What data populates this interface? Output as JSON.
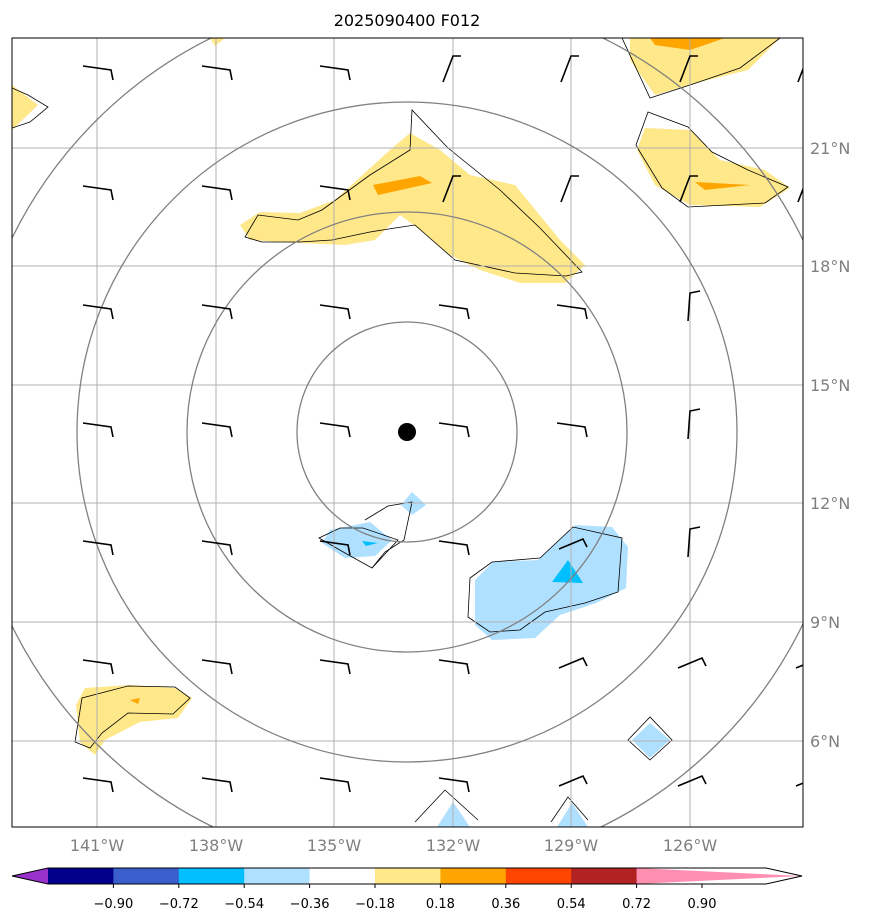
{
  "title": "2025090400 F012",
  "lon_labels": [
    "141°W",
    "138°W",
    "135°W",
    "132°W",
    "129°W",
    "126°W"
  ],
  "lat_labels": [
    "21°N",
    "18°N",
    "15°N",
    "12°N",
    "9°N",
    "6°N"
  ],
  "colorbar": {
    "tick_labels": [
      "−0.90",
      "−0.72",
      "−0.54",
      "−0.36",
      "−0.18",
      "0.18",
      "0.36",
      "0.54",
      "0.72",
      "0.90"
    ],
    "colors": [
      "#9932cc",
      "#00008b",
      "#3a5fcd",
      "#00bfff",
      "#b0e0ff",
      "#ffffff",
      "#ffe88a",
      "#ffa500",
      "#ff4500",
      "#b22222",
      "#ff8fb1"
    ]
  },
  "storm_center": {
    "lon": -133.0,
    "lat": 13.8
  }
}
